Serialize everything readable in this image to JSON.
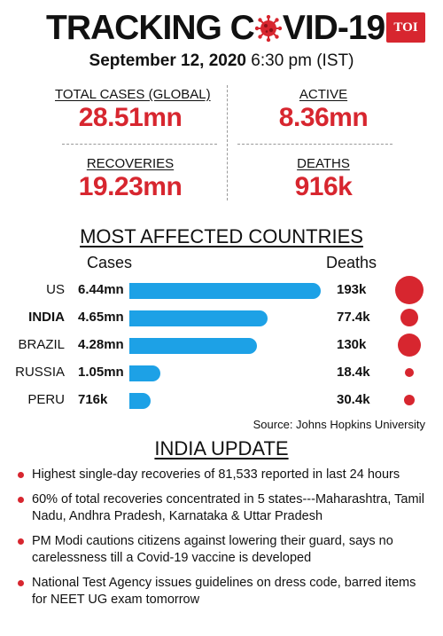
{
  "header": {
    "title_part1": "TRACKING C",
    "title_part2": "VID-19",
    "logo": "TOI",
    "date": "September 12, 2020",
    "time": "6:30 pm (IST)",
    "virus_icon": "coronavirus-icon",
    "accent_color": "#d7262f"
  },
  "stats": {
    "total_label": "TOTAL CASES (GLOBAL)",
    "total_value": "28.51mn",
    "active_label": "ACTIVE",
    "active_value": "8.36mn",
    "recoveries_label": "RECOVERIES",
    "recoveries_value": "19.23mn",
    "deaths_label": "DEATHS",
    "deaths_value": "916k"
  },
  "chart_data": {
    "type": "bar",
    "title": "MOST AFFECTED COUNTRIES",
    "col_cases": "Cases",
    "col_deaths": "Deaths",
    "categories": [
      "US",
      "INDIA",
      "BRAZIL",
      "RUSSIA",
      "PERU"
    ],
    "highlight": "INDIA",
    "cases_labels": [
      "6.44mn",
      "4.65mn",
      "4.28mn",
      "1.05mn",
      "716k"
    ],
    "cases_values_mn": [
      6.44,
      4.65,
      4.28,
      1.05,
      0.716
    ],
    "deaths_labels": [
      "193k",
      "77.4k",
      "130k",
      "18.4k",
      "30.4k"
    ],
    "deaths_values_k": [
      193,
      77.4,
      130,
      18.4,
      30.4
    ],
    "bar_color": "#1da1e6",
    "dot_color": "#d7262f",
    "source": "Source: Johns Hopkins University"
  },
  "india_update": {
    "title": "INDIA UPDATE",
    "bullets": [
      "Highest single-day recoveries of 81,533 reported in last 24 hours",
      "60% of total recoveries concentrated in 5 states---Maharashtra, Tamil Nadu, Andhra Pradesh, Karnataka & Uttar Pradesh",
      "PM Modi cautions citizens against lowering their guard, says no carelessness till a  Covid-19 vaccine is developed",
      "National Test Agency issues guidelines on dress code, barred items for NEET UG exam tomorrow"
    ]
  }
}
